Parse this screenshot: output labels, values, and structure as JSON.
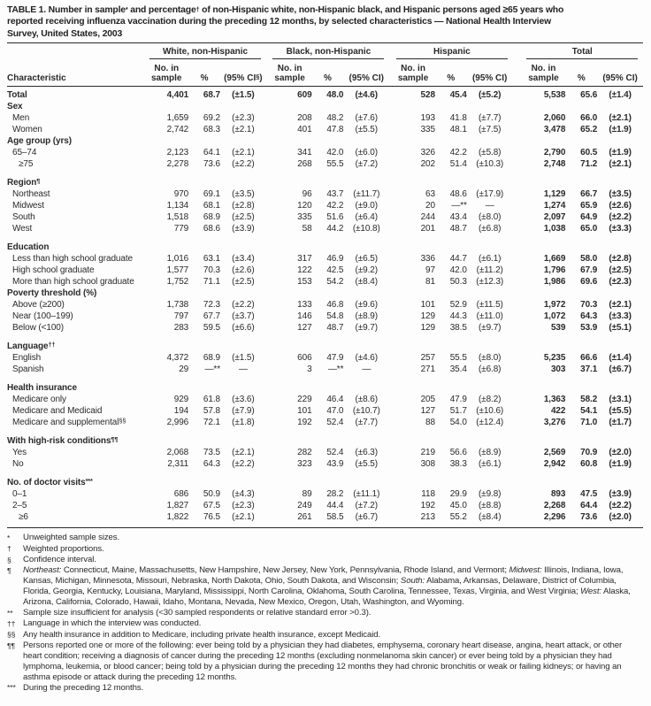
{
  "title_parts": [
    {
      "t": "TABLE 1. Number in sample"
    },
    {
      "t": "*",
      "sup": true
    },
    {
      "t": " and percentage"
    },
    {
      "t": "†",
      "sup": true
    },
    {
      "t": " of non-Hispanic white, non-Hispanic black, and Hispanic persons aged ≥65 years who"
    },
    {
      "br": true
    },
    {
      "t": "reported receiving influenza vaccination during the preceding 12 months, by selected characteristics — National Health Interview"
    },
    {
      "br": true
    },
    {
      "t": "Survey, United States, 2003"
    }
  ],
  "table": {
    "characteristic_header": "Characteristic",
    "groups": [
      {
        "label": "White, non-Hispanic",
        "sample": "No. in sample",
        "pct": "%",
        "ci": [
          {
            "t": "(95% CI"
          },
          {
            "t": "§",
            "sup": true
          },
          {
            "t": ")"
          }
        ]
      },
      {
        "label": "Black, non-Hispanic",
        "sample": "No. in sample",
        "pct": "%",
        "ci": [
          {
            "t": "(95% CI)"
          }
        ]
      },
      {
        "label": "Hispanic",
        "sample": "No. in sample",
        "pct": "%",
        "ci": [
          {
            "t": "(95% CI)"
          }
        ]
      },
      {
        "label": "Total",
        "sample": "No. in sample",
        "pct": "%",
        "ci": [
          {
            "t": "(95% CI)"
          }
        ]
      }
    ],
    "rows": [
      {
        "type": "total",
        "label": "Total",
        "v": [
          "4,401",
          "68.7",
          "(±1.5)",
          "609",
          "48.0",
          "(±4.6)",
          "528",
          "45.4",
          "(±5.2)",
          "5,538",
          "65.6",
          "(±1.4)"
        ]
      },
      {
        "type": "section",
        "label": "Sex"
      },
      {
        "type": "data",
        "label": "Men",
        "v": [
          "1,659",
          "69.2",
          "(±2.3)",
          "208",
          "48.2",
          "(±7.6)",
          "193",
          "41.8",
          "(±7.7)",
          "2,060",
          "66.0",
          "(±2.1)"
        ]
      },
      {
        "type": "data",
        "label": "Women",
        "v": [
          "2,742",
          "68.3",
          "(±2.1)",
          "401",
          "47.8",
          "(±5.5)",
          "335",
          "48.1",
          "(±7.5)",
          "3,478",
          "65.2",
          "(±1.9)"
        ]
      },
      {
        "type": "section",
        "label": "Age group (yrs)"
      },
      {
        "type": "data",
        "label": "65–74",
        "v": [
          "2,123",
          "64.1",
          "(±2.1)",
          "341",
          "42.0",
          "(±6.0)",
          "326",
          "42.2",
          "(±5.8)",
          "2,790",
          "60.5",
          "(±1.9)"
        ]
      },
      {
        "type": "data",
        "label": "≥75",
        "indent": 2,
        "v": [
          "2,278",
          "73.6",
          "(±2.2)",
          "268",
          "55.5",
          "(±7.2)",
          "202",
          "51.4",
          "(±10.3)",
          "2,748",
          "71.2",
          "(±2.1)"
        ]
      },
      {
        "type": "section",
        "label": "Region",
        "sup": "¶",
        "gap": true
      },
      {
        "type": "data",
        "label": "Northeast",
        "v": [
          "970",
          "69.1",
          "(±3.5)",
          "96",
          "43.7",
          "(±11.7)",
          "63",
          "48.6",
          "(±17.9)",
          "1,129",
          "66.7",
          "(±3.5)"
        ]
      },
      {
        "type": "data",
        "label": "Midwest",
        "v": [
          "1,134",
          "68.1",
          "(±2.8)",
          "120",
          "42.2",
          "(±9.0)",
          "20",
          "—**",
          "—",
          "1,274",
          "65.9",
          "(±2.6)"
        ]
      },
      {
        "type": "data",
        "label": "South",
        "v": [
          "1,518",
          "68.9",
          "(±2.5)",
          "335",
          "51.6",
          "(±6.4)",
          "244",
          "43.4",
          "(±8.0)",
          "2,097",
          "64.9",
          "(±2.2)"
        ]
      },
      {
        "type": "data",
        "label": "West",
        "v": [
          "779",
          "68.6",
          "(±3.9)",
          "58",
          "44.2",
          "(±10.8)",
          "201",
          "48.7",
          "(±6.8)",
          "1,038",
          "65.0",
          "(±3.3)"
        ]
      },
      {
        "type": "section",
        "label": "Education",
        "gap": true
      },
      {
        "type": "data",
        "label": "Less than high school graduate",
        "v": [
          "1,016",
          "63.1",
          "(±3.4)",
          "317",
          "46.9",
          "(±6.5)",
          "336",
          "44.7",
          "(±6.1)",
          "1,669",
          "58.0",
          "(±2.8)"
        ]
      },
      {
        "type": "data",
        "label": "High school graduate",
        "v": [
          "1,577",
          "70.3",
          "(±2.6)",
          "122",
          "42.5",
          "(±9.2)",
          "97",
          "42.0",
          "(±11.2)",
          "1,796",
          "67.9",
          "(±2.5)"
        ]
      },
      {
        "type": "data",
        "label": "More than high school graduate",
        "v": [
          "1,752",
          "71.1",
          "(±2.5)",
          "153",
          "54.2",
          "(±8.4)",
          "81",
          "50.3",
          "(±12.3)",
          "1,986",
          "69.6",
          "(±2.3)"
        ]
      },
      {
        "type": "section",
        "label": "Poverty threshold (%)"
      },
      {
        "type": "data",
        "label": "Above (≥200)",
        "v": [
          "1,738",
          "72.3",
          "(±2.2)",
          "133",
          "46.8",
          "(±9.6)",
          "101",
          "52.9",
          "(±11.5)",
          "1,972",
          "70.3",
          "(±2.1)"
        ]
      },
      {
        "type": "data",
        "label": "Near (100–199)",
        "v": [
          "797",
          "67.7",
          "(±3.7)",
          "146",
          "54.8",
          "(±8.9)",
          "129",
          "44.3",
          "(±11.0)",
          "1,072",
          "64.3",
          "(±3.3)"
        ]
      },
      {
        "type": "data",
        "label": "Below (<100)",
        "v": [
          "283",
          "59.5",
          "(±6.6)",
          "127",
          "48.7",
          "(±9.7)",
          "129",
          "38.5",
          "(±9.7)",
          "539",
          "53.9",
          "(±5.1)"
        ]
      },
      {
        "type": "section",
        "label": "Language",
        "sup": "††",
        "gap": true
      },
      {
        "type": "data",
        "label": "English",
        "v": [
          "4,372",
          "68.9",
          "(±1.5)",
          "606",
          "47.9",
          "(±4.6)",
          "257",
          "55.5",
          "(±8.0)",
          "5,235",
          "66.6",
          "(±1.4)"
        ]
      },
      {
        "type": "data",
        "label": "Spanish",
        "v": [
          "29",
          "—**",
          "—",
          "3",
          "—**",
          "—",
          "271",
          "35.4",
          "(±6.8)",
          "303",
          "37.1",
          "(±6.7)"
        ]
      },
      {
        "type": "section",
        "label": "Health insurance",
        "gap": true
      },
      {
        "type": "data",
        "label": "Medicare only",
        "v": [
          "929",
          "61.8",
          "(±3.6)",
          "229",
          "46.4",
          "(±8.6)",
          "205",
          "47.9",
          "(±8.2)",
          "1,363",
          "58.2",
          "(±3.1)"
        ]
      },
      {
        "type": "data",
        "label": "Medicare and Medicaid",
        "v": [
          "194",
          "57.8",
          "(±7.9)",
          "101",
          "47.0",
          "(±10.7)",
          "127",
          "51.7",
          "(±10.6)",
          "422",
          "54.1",
          "(±5.5)"
        ]
      },
      {
        "type": "data",
        "label": "Medicare and supplemental",
        "sup": "§§",
        "v": [
          "2,996",
          "72.1",
          "(±1.8)",
          "192",
          "52.4",
          "(±7.7)",
          "88",
          "54.0",
          "(±12.4)",
          "3,276",
          "71.0",
          "(±1.7)"
        ]
      },
      {
        "type": "section",
        "label": "With high-risk conditions",
        "sup": "¶¶",
        "gap": true
      },
      {
        "type": "data",
        "label": "Yes",
        "v": [
          "2,068",
          "73.5",
          "(±2.1)",
          "282",
          "52.4",
          "(±6.3)",
          "219",
          "56.6",
          "(±8.9)",
          "2,569",
          "70.9",
          "(±2.0)"
        ]
      },
      {
        "type": "data",
        "label": "No",
        "v": [
          "2,311",
          "64.3",
          "(±2.2)",
          "323",
          "43.9",
          "(±5.5)",
          "308",
          "38.3",
          "(±6.1)",
          "2,942",
          "60.8",
          "(±1.9)"
        ]
      },
      {
        "type": "section",
        "label": "No. of doctor visits",
        "sup": "***",
        "gap": true
      },
      {
        "type": "data",
        "label": "0–1",
        "v": [
          "686",
          "50.9",
          "(±4.3)",
          "89",
          "28.2",
          "(±11.1)",
          "118",
          "29.9",
          "(±9.8)",
          "893",
          "47.5",
          "(±3.9)"
        ]
      },
      {
        "type": "data",
        "label": "2–5",
        "v": [
          "1,827",
          "67.5",
          "(±2.3)",
          "249",
          "44.4",
          "(±7.2)",
          "192",
          "45.0",
          "(±8.8)",
          "2,268",
          "64.4",
          "(±2.2)"
        ]
      },
      {
        "type": "data",
        "label": "≥6",
        "indent": 2,
        "v": [
          "1,822",
          "76.5",
          "(±2.1)",
          "261",
          "58.5",
          "(±6.7)",
          "213",
          "55.2",
          "(±8.4)",
          "2,296",
          "73.6",
          "(±2.0)"
        ]
      }
    ]
  },
  "footnotes": [
    {
      "symbol": "*",
      "parts": [
        {
          "t": "Unweighted sample sizes."
        }
      ]
    },
    {
      "symbol": "†",
      "parts": [
        {
          "t": "Weighted proportions."
        }
      ]
    },
    {
      "symbol": "§",
      "parts": [
        {
          "t": "Confidence interval."
        }
      ]
    },
    {
      "symbol": "¶",
      "parts": [
        {
          "t": "Northeast:",
          "i": true
        },
        {
          "t": " Connecticut, Maine, Massachusetts, New Hampshire, New Jersey, New York, Pennsylvania, Rhode Island, and Vermont; "
        },
        {
          "t": "Midwest:",
          "i": true
        },
        {
          "t": " Illinois, Indiana, Iowa, Kansas, Michigan, Minnesota, Missouri, Nebraska, North Dakota, Ohio, South Dakota, and Wisconsin; "
        },
        {
          "t": "South:",
          "i": true
        },
        {
          "t": " Alabama, Arkansas, Delaware, District of Columbia, Florida, Georgia, Kentucky, Louisiana, Maryland, Mississippi, North Carolina, Oklahoma, South Carolina, Tennessee, Texas, Virginia, and West Virginia; "
        },
        {
          "t": "West:",
          "i": true
        },
        {
          "t": " Alaska, Arizona, California, Colorado, Hawaii, Idaho, Montana, Nevada, New Mexico, Oregon, Utah, Washington, and Wyoming."
        }
      ]
    },
    {
      "symbol": "**",
      "parts": [
        {
          "t": "Sample size insufficient for analysis (<30 sampled respondents or relative standard error >0.3)."
        }
      ]
    },
    {
      "symbol": "††",
      "parts": [
        {
          "t": "Language in which the interview was conducted."
        }
      ]
    },
    {
      "symbol": "§§",
      "parts": [
        {
          "t": "Any health insurance in addition to Medicare, including private health insurance, except Medicaid."
        }
      ]
    },
    {
      "symbol": "¶¶",
      "parts": [
        {
          "t": "Persons reported one or more of the following: ever being told by a physician they had diabetes, emphysema, coronary heart disease, angina, heart attack, or other heart condition; receiving a diagnosis of cancer during the preceding 12 months (excluding nonmelanoma skin cancer) or ever being told by a physician they had lymphoma, leukemia, or blood cancer; being told by a physician during the preceding 12 months they had chronic bronchitis or weak or failing kidneys; or having an asthma episode or attack during the preceding 12 months."
        }
      ]
    },
    {
      "symbol": "***",
      "parts": [
        {
          "t": "During the preceding 12 months."
        }
      ]
    }
  ]
}
